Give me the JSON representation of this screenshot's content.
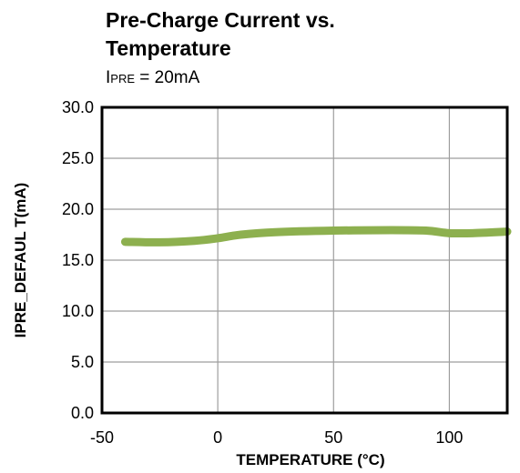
{
  "chart_data": {
    "type": "line",
    "title_line1": "Pre-Charge Current vs.",
    "title_line2": "Temperature",
    "subtitle_symbol": "I",
    "subtitle_subscript": "PRE",
    "subtitle_value": " = 20mA",
    "xlabel": "TEMPERATURE  (°C)",
    "ylabel": "IPRE_DEFAUL T(mA)",
    "xlim": [
      -50,
      125
    ],
    "ylim": [
      0,
      30
    ],
    "x_ticks": [
      -50,
      0,
      50,
      100
    ],
    "y_ticks": [
      0,
      5,
      10,
      15,
      20,
      25,
      30
    ],
    "x_tick_labels": [
      "-50",
      "0",
      "50",
      "100"
    ],
    "y_tick_labels": [
      "0.0",
      "5.0",
      "10.0",
      "15.0",
      "20.0",
      "25.0",
      "30.0"
    ],
    "grid": true,
    "series": [
      {
        "color": "#8db04f",
        "x": [
          -40,
          -25,
          -10,
          0,
          10,
          25,
          50,
          75,
          90,
          100,
          110,
          125
        ],
        "y": [
          16.8,
          16.75,
          16.9,
          17.15,
          17.5,
          17.75,
          17.9,
          17.95,
          17.9,
          17.65,
          17.65,
          17.8
        ]
      }
    ]
  }
}
